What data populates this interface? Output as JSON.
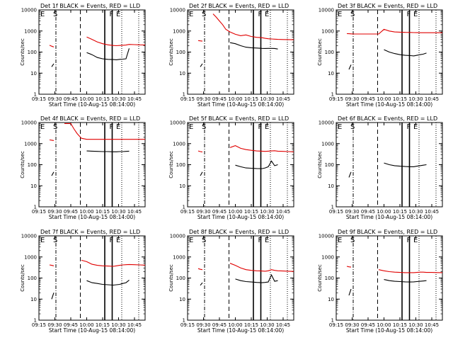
{
  "figure": {
    "x_ticks": [
      "09:15",
      "09:30",
      "09:45",
      "10:00",
      "10:15",
      "10:30",
      "10:45"
    ],
    "y_ticks": [
      "1",
      "10",
      "100",
      "1000",
      "10000"
    ],
    "xlabel": "Start Time (10-Aug-15 08:14:00)",
    "ylabel": "Counts/sec",
    "event_markers": [
      "E",
      "S",
      "F",
      "E"
    ],
    "colors": {
      "events": "#000000",
      "lld": "#e00000",
      "axes": "#000000",
      "background": "#ffffff"
    }
  },
  "chart_data": [
    {
      "type": "line",
      "title": "Det 1f BLACK = Events, RED = LLD",
      "x": [
        "09:25",
        "09:27",
        "09:29",
        "09:31",
        "09:33",
        "09:36",
        "09:39",
        "09:42",
        "09:45",
        "09:48",
        "09:51",
        "09:55",
        "10:00",
        "10:05",
        "10:10",
        "10:15",
        "10:20",
        "10:25",
        "10:28",
        "10:31",
        "10:34",
        "10:37",
        "10:40",
        "10:45",
        "10:50",
        "10:55",
        "11:00"
      ],
      "series": [
        {
          "name": "Events",
          "values": [
            null,
            20,
            28,
            null,
            null,
            null,
            null,
            null,
            null,
            null,
            null,
            null,
            95,
            75,
            55,
            48,
            45,
            44,
            43,
            45,
            46,
            48,
            150,
            null,
            null,
            null,
            null
          ]
        },
        {
          "name": "LLD",
          "values": [
            210,
            190,
            175,
            null,
            null,
            null,
            null,
            null,
            null,
            null,
            null,
            null,
            520,
            400,
            300,
            250,
            220,
            205,
            200,
            205,
            210,
            215,
            230,
            225,
            220,
            218,
            215
          ]
        }
      ],
      "ylim": [
        1,
        10000
      ],
      "yscale": "log",
      "xlim": [
        "09:15",
        "10:55"
      ],
      "vlines": {
        "dash_dot": "09:31",
        "dashed": "09:54",
        "solid": [
          "10:17",
          "10:24"
        ],
        "dotted": [
          "10:33",
          "10:49"
        ]
      }
    },
    {
      "type": "line",
      "title": "Det 2f BLACK = Events, RED = LLD",
      "x": [
        "09:25",
        "09:27",
        "09:29",
        "09:31",
        "09:33",
        "09:36",
        "09:39",
        "09:42",
        "09:45",
        "09:48",
        "09:51",
        "09:55",
        "10:00",
        "10:05",
        "10:10",
        "10:15",
        "10:20",
        "10:25",
        "10:28",
        "10:31",
        "10:34",
        "10:37",
        "10:40",
        "10:45",
        "10:50",
        "10:55",
        "11:00"
      ],
      "series": [
        {
          "name": "Events",
          "values": [
            null,
            20,
            28,
            null,
            null,
            null,
            null,
            null,
            null,
            null,
            null,
            280,
            250,
            200,
            170,
            160,
            155,
            150,
            148,
            150,
            150,
            148,
            140,
            null,
            null,
            null,
            null
          ]
        },
        {
          "name": "LLD",
          "values": [
            350,
            340,
            330,
            null,
            null,
            null,
            6500,
            4500,
            3000,
            2000,
            1200,
            900,
            700,
            600,
            650,
            550,
            500,
            480,
            450,
            430,
            420,
            410,
            400,
            395,
            390,
            385,
            380
          ]
        }
      ],
      "ylim": [
        1,
        10000
      ],
      "yscale": "log",
      "xlim": [
        "09:15",
        "10:55"
      ],
      "vlines": {
        "dash_dot": "09:31",
        "dashed": "09:54",
        "solid": [
          "10:17",
          "10:24"
        ],
        "dotted": [
          "10:33",
          "10:49"
        ]
      }
    },
    {
      "type": "line",
      "title": "Det 3f BLACK = Events, RED = LLD",
      "x": [
        "09:25",
        "09:27",
        "09:29",
        "09:31",
        "09:33",
        "09:36",
        "09:39",
        "09:42",
        "09:45",
        "09:48",
        "09:51",
        "09:55",
        "10:00",
        "10:05",
        "10:10",
        "10:15",
        "10:20",
        "10:25",
        "10:28",
        "10:31",
        "10:34",
        "10:37",
        "10:40",
        "10:45",
        "10:50",
        "10:55",
        "11:00"
      ],
      "series": [
        {
          "name": "Events",
          "values": [
            null,
            15,
            25,
            null,
            null,
            null,
            null,
            null,
            null,
            null,
            null,
            null,
            130,
            100,
            85,
            75,
            70,
            68,
            66,
            70,
            75,
            80,
            90,
            null,
            null,
            null,
            null
          ]
        },
        {
          "name": "LLD",
          "values": [
            750,
            740,
            730,
            720,
            720,
            720,
            720,
            720,
            720,
            720,
            720,
            720,
            1200,
            1000,
            900,
            880,
            860,
            850,
            840,
            835,
            830,
            830,
            830,
            830,
            830,
            830,
            830
          ]
        }
      ],
      "ylim": [
        1,
        10000
      ],
      "yscale": "log",
      "xlim": [
        "09:15",
        "10:55"
      ],
      "vlines": {
        "dash_dot": "09:31",
        "dashed": "09:54",
        "solid": [
          "10:17",
          "10:24"
        ],
        "dotted": [
          "10:33",
          "10:49"
        ]
      }
    },
    {
      "type": "line",
      "title": "Det 4f BLACK = Events, RED = LLD",
      "x": [
        "09:25",
        "09:27",
        "09:29",
        "09:31",
        "09:33",
        "09:36",
        "09:39",
        "09:42",
        "09:45",
        "09:48",
        "09:51",
        "09:55",
        "10:00",
        "10:05",
        "10:10",
        "10:15",
        "10:20",
        "10:25",
        "10:28",
        "10:31",
        "10:34",
        "10:37",
        "10:40",
        "10:45",
        "10:50",
        "10:55",
        "11:00"
      ],
      "series": [
        {
          "name": "Events",
          "values": [
            null,
            30,
            45,
            null,
            null,
            null,
            null,
            null,
            null,
            null,
            null,
            null,
            450,
            440,
            430,
            420,
            420,
            410,
            410,
            420,
            420,
            430,
            440,
            null,
            null,
            null,
            null
          ]
        },
        {
          "name": "LLD",
          "values": [
            1500,
            1450,
            1400,
            null,
            null,
            null,
            9000,
            9000,
            9000,
            5000,
            3000,
            1800,
            1600,
            1600,
            1600,
            1600,
            1600,
            1600,
            1600,
            1600,
            1600,
            1600,
            1600,
            1600,
            1600,
            1600,
            1600
          ]
        }
      ],
      "ylim": [
        1,
        10000
      ],
      "yscale": "log",
      "xlim": [
        "09:15",
        "10:55"
      ],
      "vlines": {
        "dash_dot": "09:31",
        "dashed": "09:54",
        "solid": [
          "10:17",
          "10:24"
        ],
        "dotted": [
          "10:33",
          "10:49"
        ]
      }
    },
    {
      "type": "line",
      "title": "Det 5f BLACK = Events, RED = LLD",
      "x": [
        "09:25",
        "09:27",
        "09:29",
        "09:31",
        "09:33",
        "09:36",
        "09:39",
        "09:42",
        "09:45",
        "09:48",
        "09:51",
        "09:55",
        "10:00",
        "10:05",
        "10:10",
        "10:15",
        "10:20",
        "10:25",
        "10:28",
        "10:31",
        "10:34",
        "10:37",
        "10:40",
        "10:45",
        "10:50",
        "10:55",
        "11:00"
      ],
      "series": [
        {
          "name": "Events",
          "values": [
            null,
            30,
            45,
            null,
            null,
            null,
            null,
            null,
            null,
            null,
            null,
            null,
            95,
            80,
            70,
            68,
            66,
            65,
            70,
            80,
            150,
            90,
            100,
            null,
            null,
            null,
            null
          ]
        },
        {
          "name": "LLD",
          "values": [
            450,
            420,
            400,
            null,
            null,
            null,
            null,
            null,
            null,
            null,
            null,
            650,
            800,
            600,
            520,
            480,
            450,
            440,
            430,
            440,
            450,
            460,
            440,
            430,
            420,
            410,
            400
          ]
        }
      ],
      "ylim": [
        1,
        10000
      ],
      "yscale": "log",
      "xlim": [
        "09:15",
        "10:55"
      ],
      "vlines": {
        "dash_dot": "09:31",
        "dashed": "09:54",
        "solid": [
          "10:17",
          "10:24"
        ],
        "dotted": [
          "10:33",
          "10:49"
        ]
      }
    },
    {
      "type": "line",
      "title": "Det 6f BLACK = Events, RED = LLD",
      "x": [
        "09:25",
        "09:27",
        "09:29",
        "09:31",
        "09:33",
        "09:36",
        "09:39",
        "09:42",
        "09:45",
        "09:48",
        "09:51",
        "09:55",
        "10:00",
        "10:05",
        "10:10",
        "10:15",
        "10:20",
        "10:25",
        "10:28",
        "10:31",
        "10:34",
        "10:37",
        "10:40",
        "10:45",
        "10:50",
        "10:55",
        "11:00"
      ],
      "series": [
        {
          "name": "Events",
          "values": [
            null,
            25,
            45,
            null,
            null,
            null,
            null,
            null,
            null,
            null,
            null,
            null,
            120,
            100,
            90,
            85,
            82,
            80,
            80,
            85,
            90,
            95,
            100,
            null,
            null,
            null,
            null
          ]
        }
      ],
      "ylim": [
        1,
        10000
      ],
      "yscale": "log",
      "xlim": [
        "09:15",
        "10:55"
      ],
      "vlines": {
        "dash_dot": "09:31",
        "dashed": "09:54",
        "solid": [
          "10:17",
          "10:24"
        ],
        "dotted": [
          "10:33",
          "10:49"
        ]
      }
    },
    {
      "type": "line",
      "title": "Det 7f BLACK = Events, RED = LLD",
      "x": [
        "09:25",
        "09:27",
        "09:29",
        "09:31",
        "09:33",
        "09:36",
        "09:39",
        "09:42",
        "09:45",
        "09:48",
        "09:51",
        "09:55",
        "10:00",
        "10:05",
        "10:10",
        "10:15",
        "10:20",
        "10:25",
        "10:28",
        "10:31",
        "10:34",
        "10:37",
        "10:40",
        "10:45",
        "10:50",
        "10:55",
        "11:00"
      ],
      "series": [
        {
          "name": "Events",
          "values": [
            null,
            10,
            20,
            null,
            null,
            null,
            null,
            null,
            null,
            null,
            null,
            null,
            75,
            60,
            55,
            50,
            48,
            46,
            48,
            50,
            55,
            60,
            80,
            null,
            null,
            null,
            null
          ]
        },
        {
          "name": "LLD",
          "values": [
            420,
            400,
            380,
            null,
            null,
            null,
            null,
            null,
            null,
            null,
            null,
            700,
            600,
            450,
            400,
            380,
            370,
            360,
            380,
            400,
            420,
            430,
            440,
            430,
            420,
            410,
            400
          ]
        }
      ],
      "ylim": [
        1,
        10000
      ],
      "yscale": "log",
      "xlim": [
        "09:15",
        "10:55"
      ],
      "vlines": {
        "dash_dot": "09:31",
        "dashed": "09:54",
        "solid": [
          "10:17",
          "10:24"
        ],
        "dotted": [
          "10:33",
          "10:49"
        ]
      }
    },
    {
      "type": "line",
      "title": "Det 8f BLACK = Events, RED = LLD",
      "x": [
        "09:25",
        "09:27",
        "09:29",
        "09:31",
        "09:33",
        "09:36",
        "09:39",
        "09:42",
        "09:45",
        "09:48",
        "09:51",
        "09:55",
        "10:00",
        "10:05",
        "10:10",
        "10:15",
        "10:20",
        "10:25",
        "10:28",
        "10:31",
        "10:34",
        "10:37",
        "10:40",
        "10:45",
        "10:50",
        "10:55",
        "11:00"
      ],
      "series": [
        {
          "name": "Events",
          "values": [
            null,
            45,
            60,
            null,
            null,
            null,
            null,
            null,
            null,
            null,
            null,
            null,
            90,
            75,
            68,
            65,
            62,
            60,
            62,
            65,
            140,
            70,
            75,
            null,
            null,
            null,
            null
          ]
        },
        {
          "name": "LLD",
          "values": [
            280,
            260,
            250,
            null,
            null,
            null,
            null,
            null,
            null,
            null,
            null,
            500,
            400,
            300,
            250,
            230,
            220,
            215,
            210,
            220,
            250,
            230,
            220,
            215,
            210,
            205,
            200
          ]
        }
      ],
      "ylim": [
        1,
        10000
      ],
      "yscale": "log",
      "xlim": [
        "09:15",
        "10:55"
      ],
      "vlines": {
        "dash_dot": "09:31",
        "dashed": "09:54",
        "solid": [
          "10:17",
          "10:24"
        ],
        "dotted": [
          "10:33",
          "10:49"
        ]
      }
    },
    {
      "type": "line",
      "title": "Det 9f BLACK = Events, RED = LLD",
      "x": [
        "09:25",
        "09:27",
        "09:29",
        "09:31",
        "09:33",
        "09:36",
        "09:39",
        "09:42",
        "09:45",
        "09:48",
        "09:51",
        "09:55",
        "10:00",
        "10:05",
        "10:10",
        "10:15",
        "10:20",
        "10:25",
        "10:28",
        "10:31",
        "10:34",
        "10:37",
        "10:40",
        "10:45",
        "10:50",
        "10:55",
        "11:00"
      ],
      "series": [
        {
          "name": "Events",
          "values": [
            null,
            15,
            30,
            null,
            null,
            null,
            null,
            null,
            null,
            null,
            null,
            null,
            85,
            75,
            70,
            68,
            66,
            65,
            66,
            68,
            70,
            72,
            75,
            null,
            null,
            null,
            null
          ]
        },
        {
          "name": "LLD",
          "values": [
            360,
            340,
            330,
            null,
            null,
            null,
            null,
            null,
            null,
            null,
            null,
            250,
            220,
            200,
            190,
            185,
            180,
            180,
            180,
            185,
            190,
            190,
            185,
            185,
            182,
            180,
            180
          ]
        }
      ],
      "ylim": [
        1,
        10000
      ],
      "yscale": "log",
      "xlim": [
        "09:15",
        "10:55"
      ],
      "vlines": {
        "dash_dot": "09:31",
        "dashed": "09:54",
        "solid": [
          "10:17",
          "10:24"
        ],
        "dotted": [
          "10:33",
          "10:49"
        ]
      }
    }
  ]
}
